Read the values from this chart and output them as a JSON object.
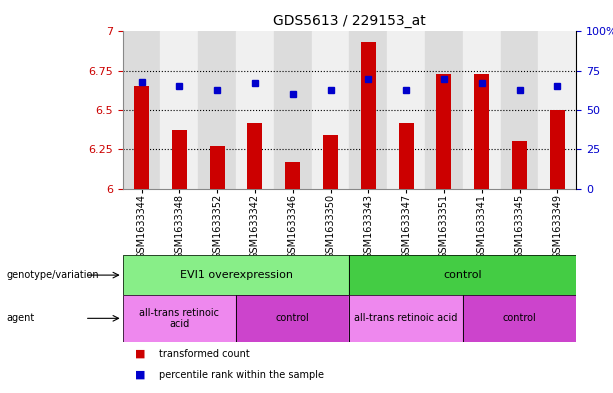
{
  "title": "GDS5613 / 229153_at",
  "samples": [
    "GSM1633344",
    "GSM1633348",
    "GSM1633352",
    "GSM1633342",
    "GSM1633346",
    "GSM1633350",
    "GSM1633343",
    "GSM1633347",
    "GSM1633351",
    "GSM1633341",
    "GSM1633345",
    "GSM1633349"
  ],
  "red_values": [
    6.65,
    6.37,
    6.27,
    6.42,
    6.17,
    6.34,
    6.93,
    6.42,
    6.73,
    6.73,
    6.3,
    6.5
  ],
  "blue_values": [
    68,
    65,
    63,
    67,
    60,
    63,
    70,
    63,
    70,
    67,
    63,
    65
  ],
  "ylim_left": [
    6.0,
    7.0
  ],
  "ylim_right": [
    0,
    100
  ],
  "yticks_left": [
    6.0,
    6.25,
    6.5,
    6.75,
    7.0
  ],
  "ytick_labels_left": [
    "6",
    "6.25",
    "6.5",
    "6.75",
    "7"
  ],
  "yticks_right": [
    0,
    25,
    50,
    75,
    100
  ],
  "ytick_labels_right": [
    "0",
    "25",
    "50",
    "75",
    "100%"
  ],
  "grid_lines": [
    6.25,
    6.5,
    6.75
  ],
  "bar_color": "#cc0000",
  "dot_color": "#0000cc",
  "col_bg_even": "#dcdcdc",
  "col_bg_odd": "#f0f0f0",
  "genotype_groups": [
    {
      "label": "EVI1 overexpression",
      "start": 0,
      "end": 6,
      "color": "#88ee88"
    },
    {
      "label": "control",
      "start": 6,
      "end": 12,
      "color": "#44cc44"
    }
  ],
  "agent_groups": [
    {
      "label": "all-trans retinoic\nacid",
      "start": 0,
      "end": 3,
      "color": "#ee88ee"
    },
    {
      "label": "control",
      "start": 3,
      "end": 6,
      "color": "#cc44cc"
    },
    {
      "label": "all-trans retinoic acid",
      "start": 6,
      "end": 9,
      "color": "#ee88ee"
    },
    {
      "label": "control",
      "start": 9,
      "end": 12,
      "color": "#cc44cc"
    }
  ],
  "legend_items": [
    {
      "label": "transformed count",
      "color": "#cc0000"
    },
    {
      "label": "percentile rank within the sample",
      "color": "#0000cc"
    }
  ],
  "row_labels": [
    "genotype/variation",
    "agent"
  ],
  "bar_width": 0.4
}
